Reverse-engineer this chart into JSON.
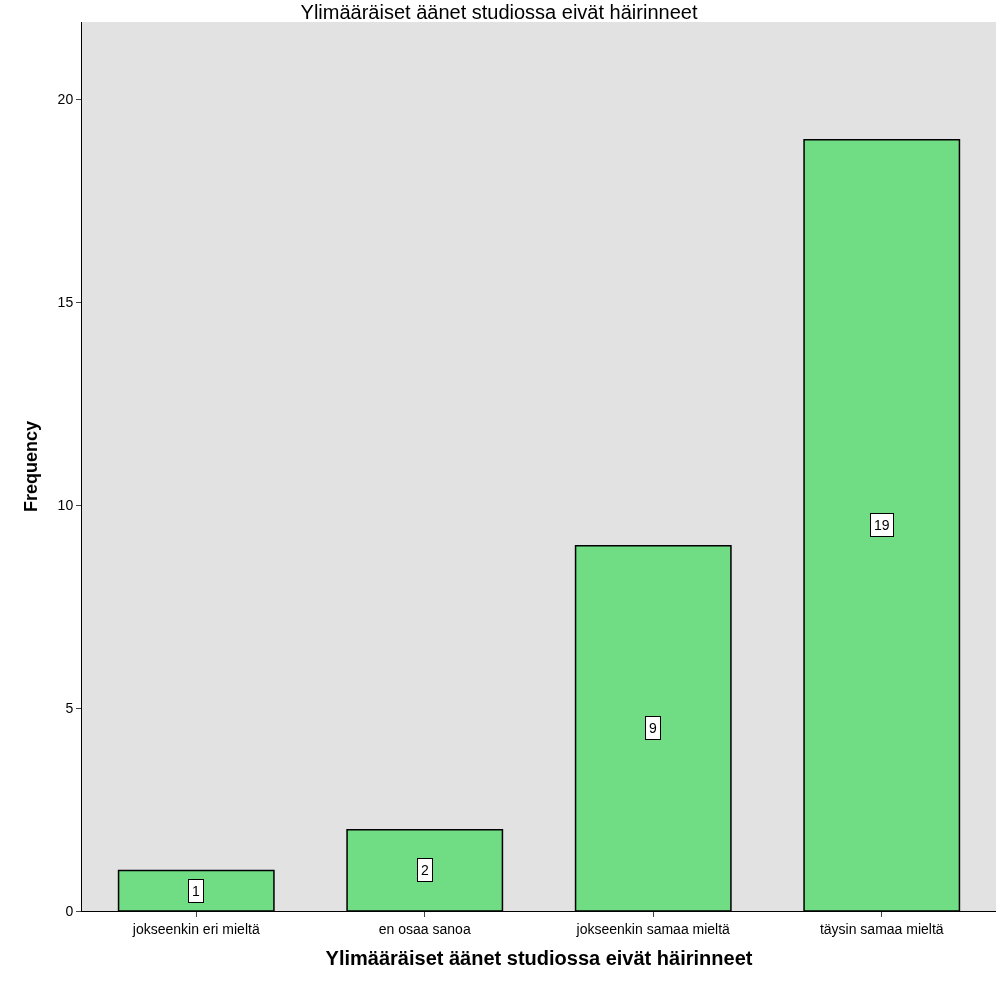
{
  "chart_data": {
    "type": "bar",
    "title": "Ylimääräiset äänet studiossa eivät häirinneet",
    "xlabel": "Ylimääräiset äänet studiossa eivät häirinneet",
    "ylabel": "Frequency",
    "categories": [
      "jokseenkin eri mieltä",
      "en osaa sanoa",
      "jokseenkin samaa mieltä",
      "täysin samaa mieltä"
    ],
    "values": [
      1,
      2,
      9,
      19
    ],
    "color": "#70dc84",
    "ylim": [
      0,
      21.9
    ],
    "yticks": [
      0,
      5,
      10,
      15,
      20
    ],
    "grid": false,
    "legend": false,
    "data_labels": true
  }
}
